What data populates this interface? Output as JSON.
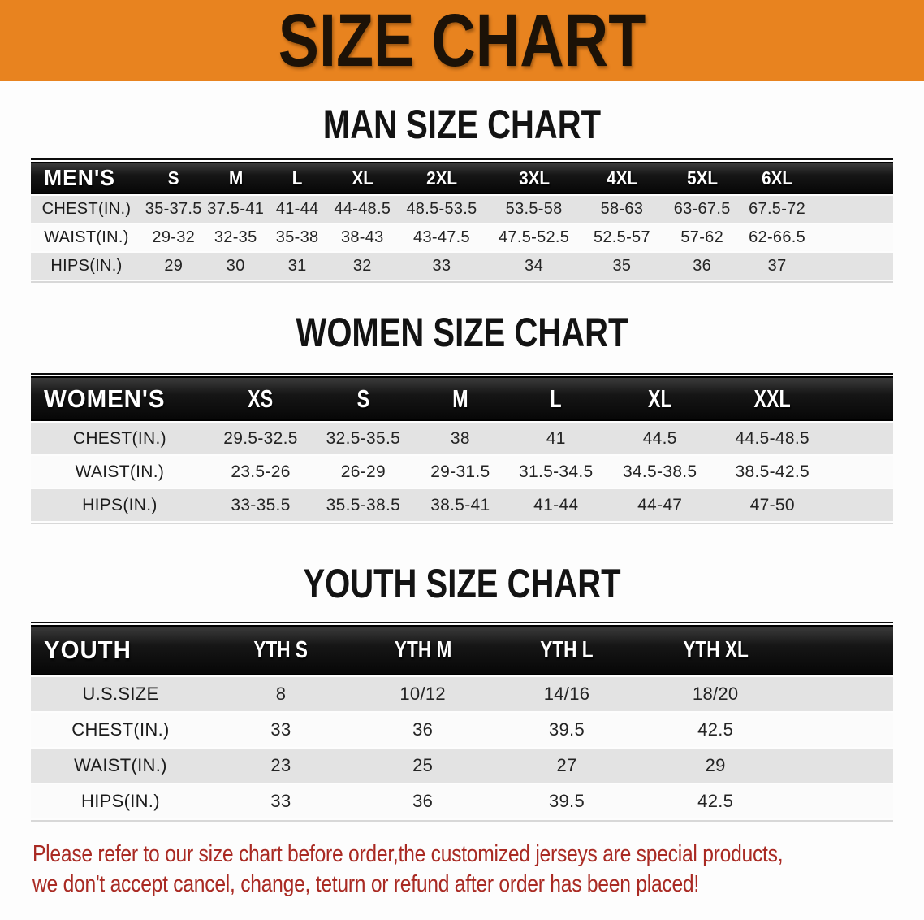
{
  "colors": {
    "banner_orange": "#E8831F",
    "table_header_black": "#121212",
    "row_gray": "#E3E3E3",
    "row_white": "#FBFBFB",
    "footer_red": "#A92A23",
    "heading_black": "#131313"
  },
  "banner": {
    "title": "SIZE CHART"
  },
  "sections": [
    {
      "heading": "MAN SIZE CHART",
      "table": {
        "header": [
          "MEN'S",
          "S",
          "M",
          "L",
          "XL",
          "2XL",
          "3XL",
          "4XL",
          "5XL",
          "6XL"
        ],
        "rows": [
          {
            "label": "CHEST(IN.)",
            "values": [
              "35-37.5",
              "37.5-41",
              "41-44",
              "44-48.5",
              "48.5-53.5",
              "53.5-58",
              "58-63",
              "63-67.5",
              "67.5-72"
            ]
          },
          {
            "label": "WAIST(IN.)",
            "values": [
              "29-32",
              "32-35",
              "35-38",
              "38-43",
              "43-47.5",
              "47.5-52.5",
              "52.5-57",
              "57-62",
              "62-66.5"
            ]
          },
          {
            "label": "HIPS(IN.)",
            "values": [
              "29",
              "30",
              "31",
              "32",
              "33",
              "34",
              "35",
              "36",
              "37"
            ]
          }
        ]
      }
    },
    {
      "heading": "WOMEN SIZE CHART",
      "table": {
        "header": [
          "WOMEN'S",
          "XS",
          "S",
          "M",
          "L",
          "XL",
          "XXL"
        ],
        "rows": [
          {
            "label": "CHEST(IN.)",
            "values": [
              "29.5-32.5",
              "32.5-35.5",
              "38",
              "41",
              "44.5",
              "44.5-48.5"
            ]
          },
          {
            "label": "WAIST(IN.)",
            "values": [
              "23.5-26",
              "26-29",
              "29-31.5",
              "31.5-34.5",
              "34.5-38.5",
              "38.5-42.5"
            ]
          },
          {
            "label": "HIPS(IN.)",
            "values": [
              "33-35.5",
              "35.5-38.5",
              "38.5-41",
              "41-44",
              "44-47",
              "47-50"
            ]
          }
        ]
      }
    },
    {
      "heading": "YOUTH SIZE CHART",
      "table": {
        "header": [
          "YOUTH",
          "YTH S",
          "YTH M",
          "YTH L",
          "YTH XL"
        ],
        "rows": [
          {
            "label": "U.S.SIZE",
            "values": [
              "8",
              "10/12",
              "14/16",
              "18/20"
            ]
          },
          {
            "label": "CHEST(IN.)",
            "values": [
              "33",
              "36",
              "39.5",
              "42.5"
            ]
          },
          {
            "label": "WAIST(IN.)",
            "values": [
              "23",
              "25",
              "27",
              "29"
            ]
          },
          {
            "label": "HIPS(IN.)",
            "values": [
              "33",
              "36",
              "39.5",
              "42.5"
            ]
          }
        ]
      }
    }
  ],
  "footer": {
    "line1": "Please refer to our size chart before order,the customized jerseys are special products,",
    "line2": "we don't accept cancel, change, teturn or refund after order has been placed!"
  }
}
